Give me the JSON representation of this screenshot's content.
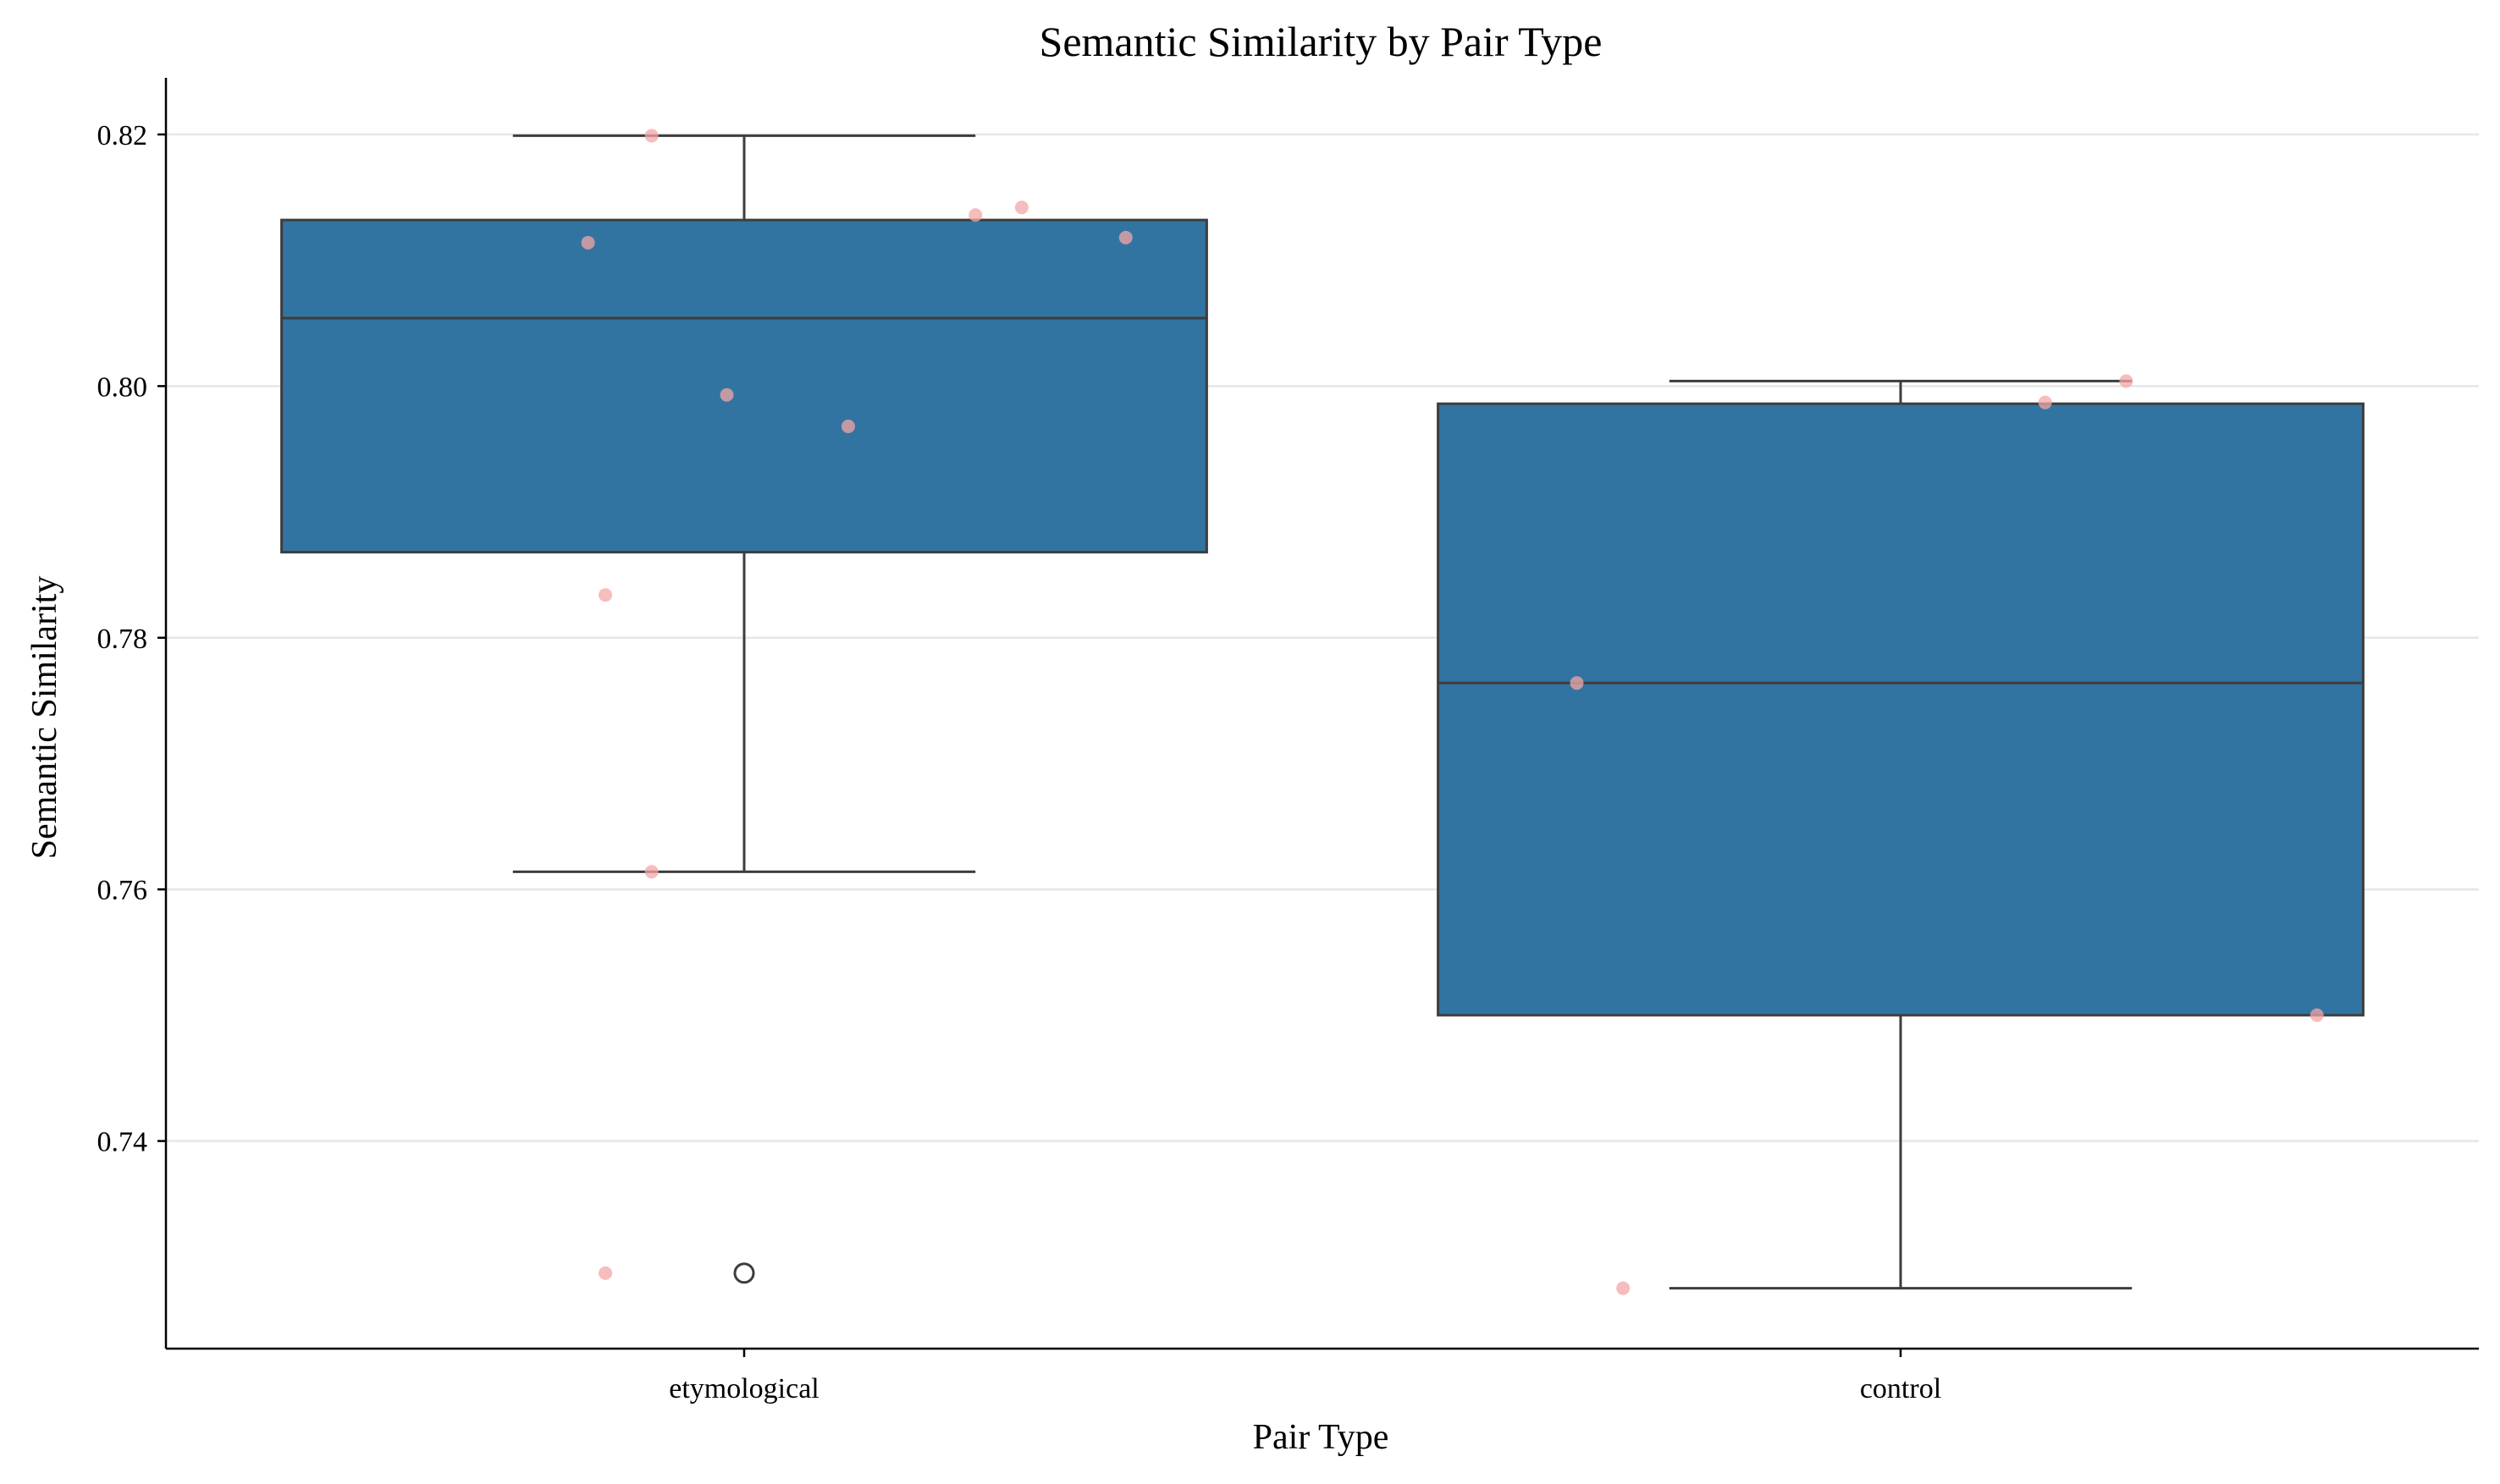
{
  "chart_data": {
    "type": "box",
    "title": "Semantic Similarity by Pair Type",
    "xlabel": "Pair Type",
    "ylabel": "Semantic Similarity",
    "categories": [
      "etymological",
      "control"
    ],
    "ylim": [
      0.7235,
      0.8245
    ],
    "yticks": [
      0.74,
      0.76,
      0.78,
      0.8,
      0.82
    ],
    "ytick_labels": [
      "0.74",
      "0.76",
      "0.78",
      "0.80",
      "0.82"
    ],
    "grid": "horizontal",
    "box_color": "#3274a1",
    "line_color": "#3d3d3d",
    "point_color": "#f4a6a6",
    "boxes": [
      {
        "category": "etymological",
        "whisker_low": 0.7614,
        "q1": 0.7868,
        "median": 0.8054,
        "q3": 0.8132,
        "whisker_high": 0.8199,
        "outliers": [
          0.7295
        ]
      },
      {
        "category": "control",
        "whisker_low": 0.7283,
        "q1": 0.75,
        "median": 0.7764,
        "q3": 0.7986,
        "whisker_high": 0.8004,
        "outliers": []
      }
    ],
    "points": [
      {
        "category": "etymological",
        "offset": -0.12,
        "y": 0.7295
      },
      {
        "category": "etymological",
        "offset": -0.08,
        "y": 0.7614
      },
      {
        "category": "etymological",
        "offset": -0.12,
        "y": 0.7834
      },
      {
        "category": "etymological",
        "offset": 0.09,
        "y": 0.7968
      },
      {
        "category": "etymological",
        "offset": -0.015,
        "y": 0.7993
      },
      {
        "category": "etymological",
        "offset": -0.135,
        "y": 0.8114
      },
      {
        "category": "etymological",
        "offset": 0.33,
        "y": 0.8118
      },
      {
        "category": "etymological",
        "offset": 0.2,
        "y": 0.8136
      },
      {
        "category": "etymological",
        "offset": 0.24,
        "y": 0.8142
      },
      {
        "category": "etymological",
        "offset": -0.08,
        "y": 0.8199
      },
      {
        "category": "control",
        "offset": -0.24,
        "y": 0.7283
      },
      {
        "category": "control",
        "offset": 0.36,
        "y": 0.75
      },
      {
        "category": "control",
        "offset": -0.28,
        "y": 0.7764
      },
      {
        "category": "control",
        "offset": 0.125,
        "y": 0.7987
      },
      {
        "category": "control",
        "offset": 0.195,
        "y": 0.8004
      }
    ]
  }
}
